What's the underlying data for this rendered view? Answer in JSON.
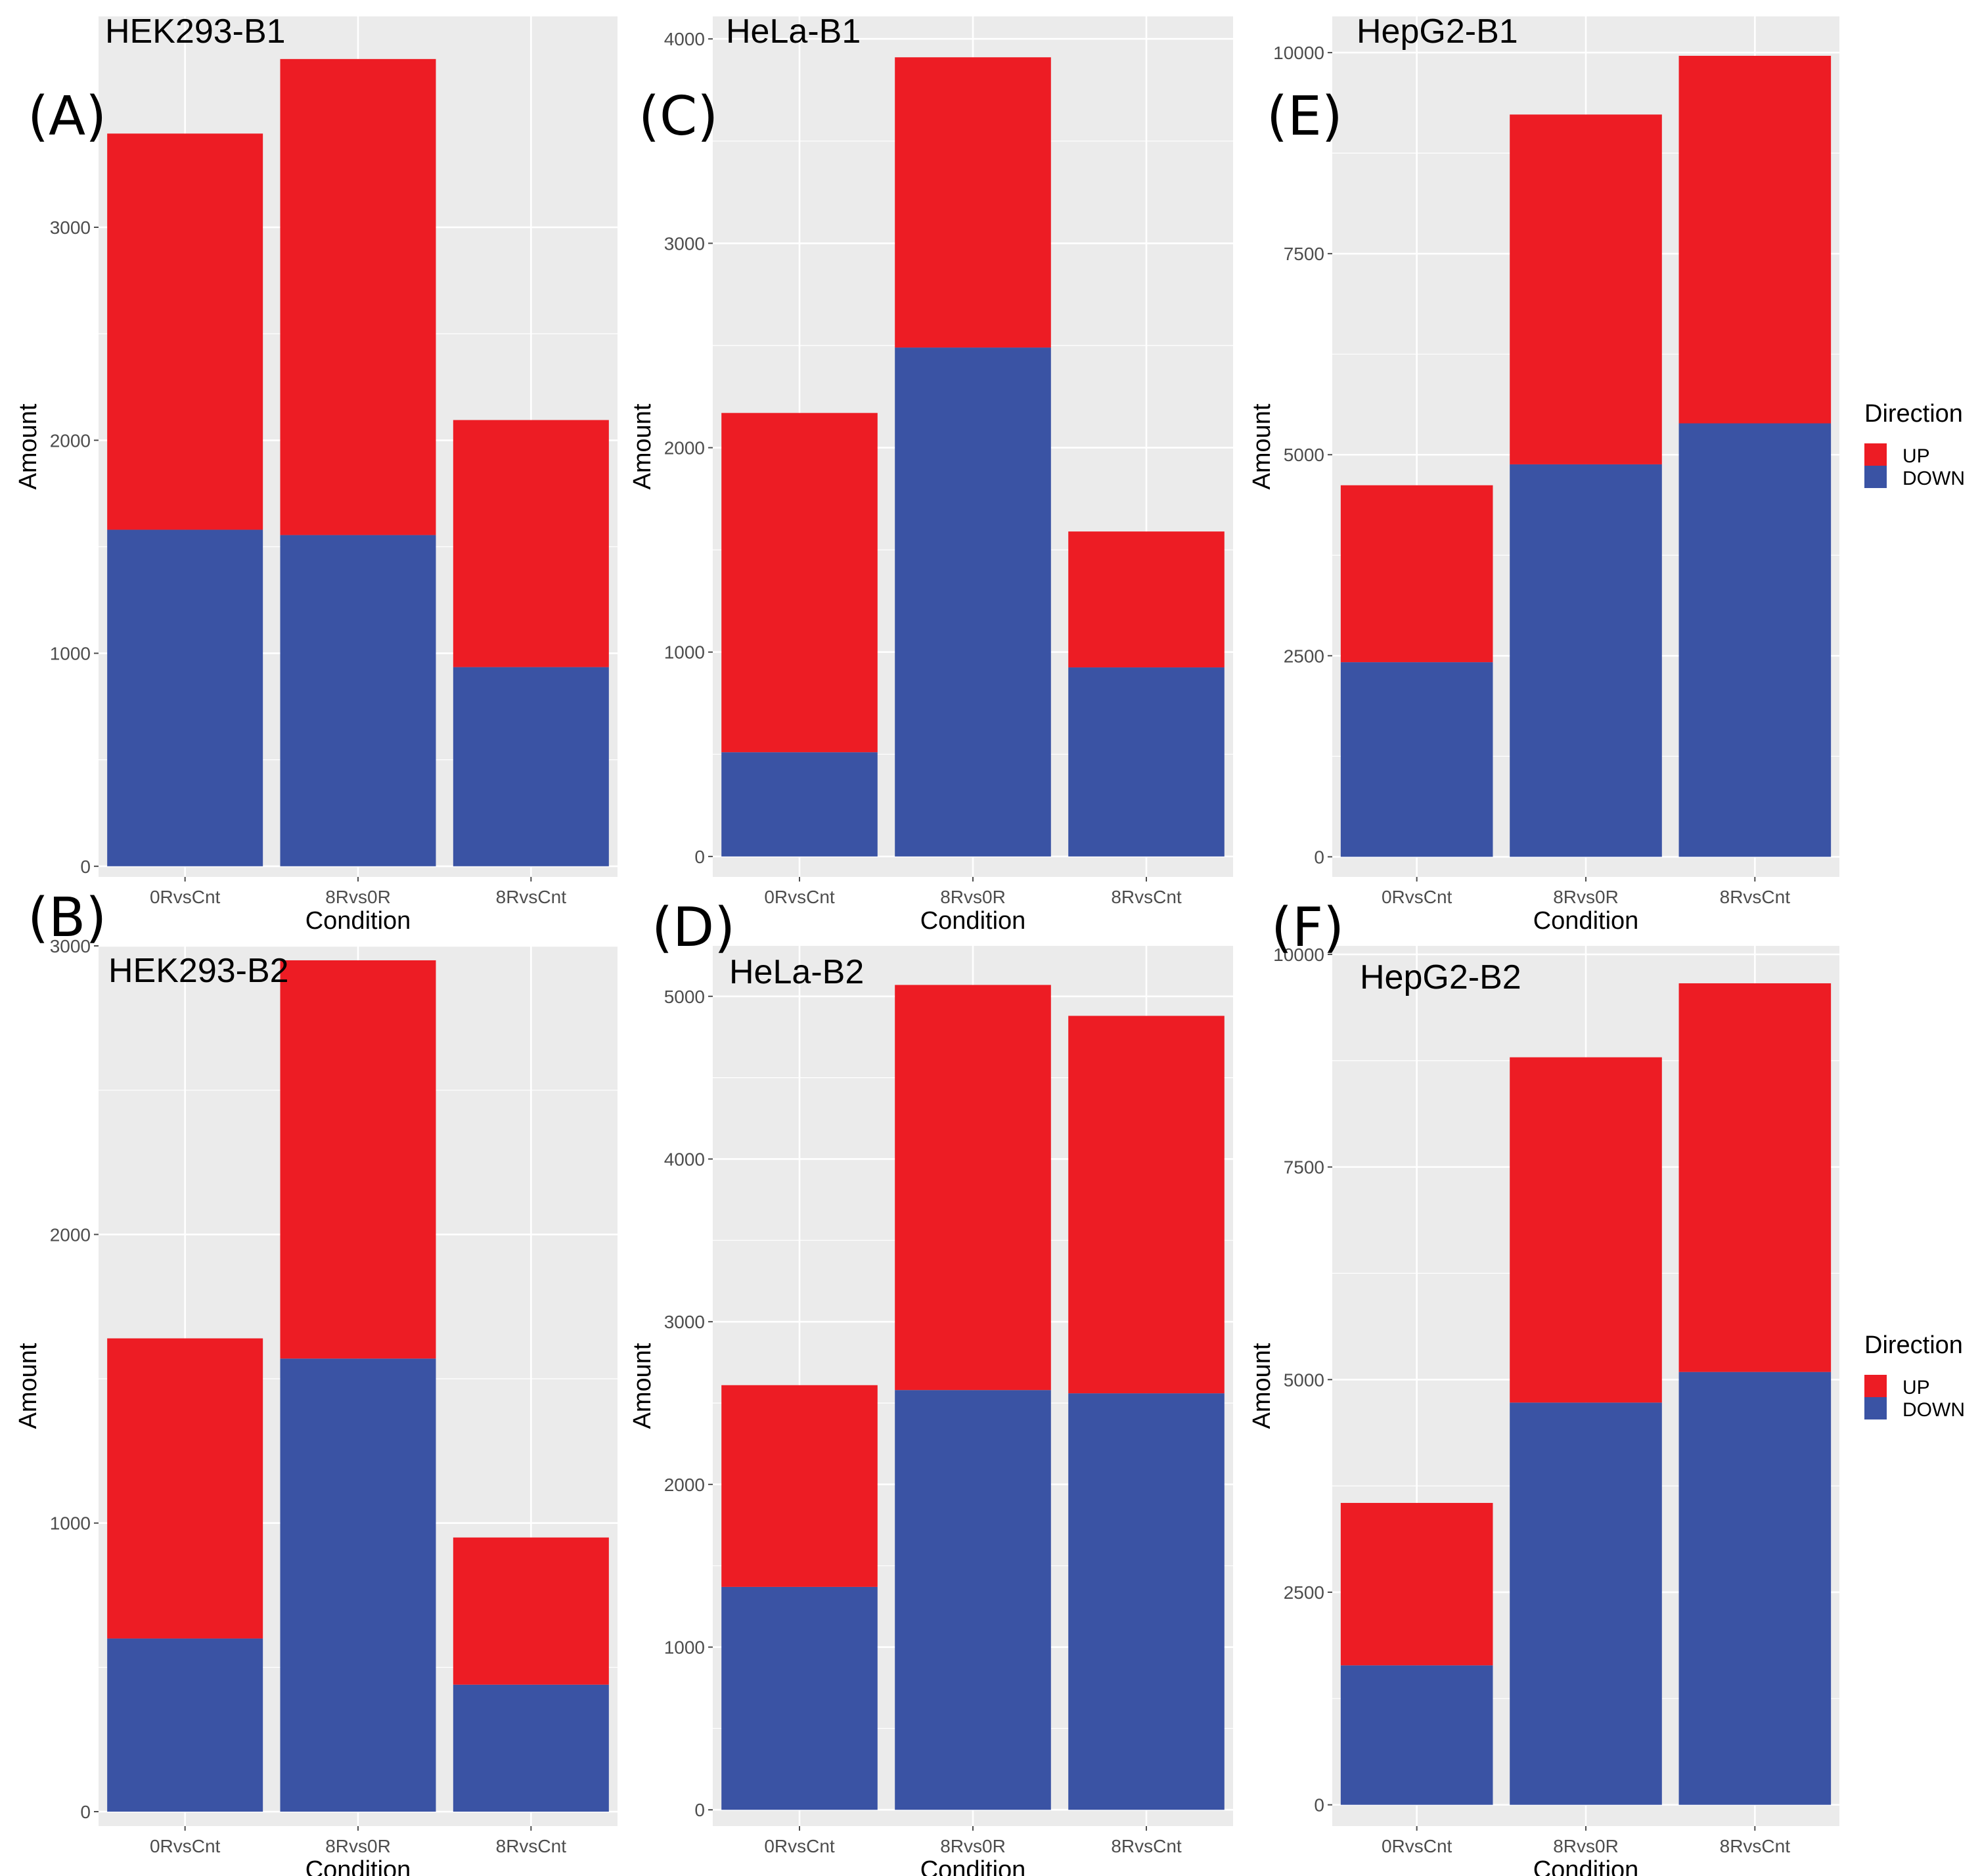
{
  "colors": {
    "up": "#ed1c24",
    "down": "#3a53a4",
    "panel_bg": "#ebebeb",
    "grid": "#ffffff",
    "tick": "#4d4d4d"
  },
  "legend": {
    "title": "Direction",
    "up_label": "UP",
    "down_label": "DOWN"
  },
  "chart_data": [
    {
      "id": "A",
      "tag": "(A)",
      "title": "HEK293-B1",
      "type": "bar",
      "xlabel": "Condition",
      "ylabel": "Amount",
      "categories": [
        "0RvsCnt",
        "8Rvs0R",
        "8RvsCnt"
      ],
      "series": [
        {
          "name": "DOWN",
          "values": [
            1580,
            1555,
            935
          ]
        },
        {
          "name": "UP",
          "values": [
            1860,
            2235,
            1160
          ]
        }
      ],
      "yticks": [
        0,
        1000,
        2000,
        3000
      ],
      "ylim": [
        -50,
        3990
      ]
    },
    {
      "id": "B",
      "tag": "(B)",
      "title": "HEK293-B2",
      "type": "bar",
      "xlabel": "Condition",
      "ylabel": "Amount",
      "categories": [
        "0RvsCnt",
        "8Rvs0R",
        "8RvsCnt"
      ],
      "series": [
        {
          "name": "DOWN",
          "values": [
            600,
            1570,
            440
          ]
        },
        {
          "name": "UP",
          "values": [
            1040,
            1380,
            510
          ]
        }
      ],
      "yticks": [
        0,
        1000,
        2000,
        3000
      ],
      "ylim": [
        -50,
        3000
      ]
    },
    {
      "id": "C",
      "tag": "(C)",
      "title": "HeLa-B1",
      "type": "bar",
      "xlabel": "Condition",
      "ylabel": "Amount",
      "categories": [
        "0RvsCnt",
        "8Rvs0R",
        "8RvsCnt"
      ],
      "series": [
        {
          "name": "DOWN",
          "values": [
            510,
            2490,
            925
          ]
        },
        {
          "name": "UP",
          "values": [
            1660,
            1420,
            665
          ]
        }
      ],
      "yticks": [
        0,
        1000,
        2000,
        3000,
        4000
      ],
      "ylim": [
        -100,
        4110
      ]
    },
    {
      "id": "D",
      "tag": "(D)",
      "title": "HeLa-B2",
      "type": "bar",
      "xlabel": "Condition",
      "ylabel": "Amount",
      "categories": [
        "0RvsCnt",
        "8Rvs0R",
        "8RvsCnt"
      ],
      "series": [
        {
          "name": "DOWN",
          "values": [
            1370,
            2580,
            2560
          ]
        },
        {
          "name": "UP",
          "values": [
            1240,
            2490,
            2320
          ]
        }
      ],
      "yticks": [
        0,
        1000,
        2000,
        3000,
        4000,
        5000
      ],
      "ylim": [
        -100,
        5310
      ]
    },
    {
      "id": "E",
      "tag": "(E)",
      "title": "HepG2-B1",
      "type": "bar",
      "xlabel": "Condition",
      "ylabel": "Amount",
      "categories": [
        "0RvsCnt",
        "8Rvs0R",
        "8RvsCnt"
      ],
      "series": [
        {
          "name": "DOWN",
          "values": [
            2420,
            4880,
            5390
          ]
        },
        {
          "name": "UP",
          "values": [
            2200,
            4350,
            4570
          ]
        }
      ],
      "yticks": [
        0,
        2500,
        5000,
        7500,
        10000
      ],
      "ylim": [
        -250,
        10450
      ]
    },
    {
      "id": "F",
      "tag": "(F)",
      "title": "HepG2-B2",
      "type": "bar",
      "xlabel": "Condition",
      "ylabel": "Amount",
      "categories": [
        "0RvsCnt",
        "8Rvs0R",
        "8RvsCnt"
      ],
      "series": [
        {
          "name": "DOWN",
          "values": [
            1640,
            4730,
            5090
          ]
        },
        {
          "name": "UP",
          "values": [
            1910,
            4060,
            4570
          ]
        }
      ],
      "yticks": [
        0,
        2500,
        5000,
        7500,
        10000
      ],
      "ylim": [
        -250,
        10100
      ]
    }
  ]
}
